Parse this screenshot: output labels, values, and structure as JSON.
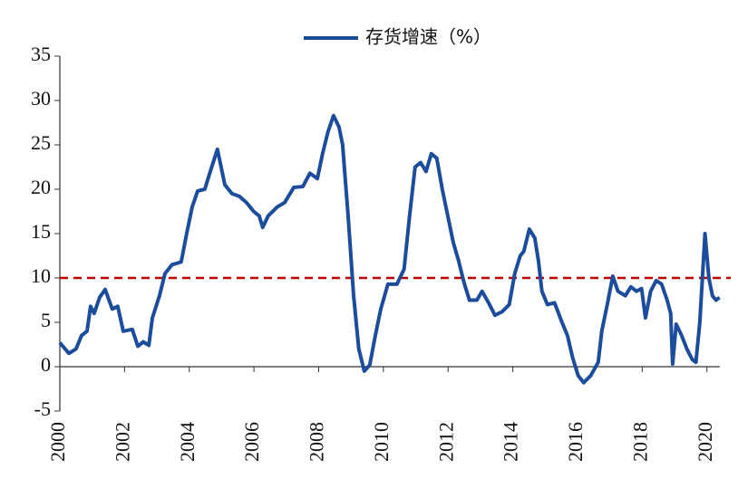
{
  "chart_data": {
    "type": "line",
    "x": [
      2000,
      2000.28,
      2000.5,
      2000.67,
      2000.84,
      2000.95,
      2001.06,
      2001.23,
      2001.4,
      2001.62,
      2001.79,
      2001.96,
      2002.24,
      2002.41,
      2002.58,
      2002.75,
      2002.86,
      2003.08,
      2003.25,
      2003.47,
      2003.75,
      2003.92,
      2004.09,
      2004.26,
      2004.48,
      2004.65,
      2004.87,
      2005.1,
      2005.32,
      2005.55,
      2005.77,
      2005.99,
      2006.16,
      2006.27,
      2006.44,
      2006.72,
      2006.95,
      2007.23,
      2007.51,
      2007.73,
      2007.96,
      2008.12,
      2008.29,
      2008.46,
      2008.63,
      2008.74,
      2008.91,
      2009.08,
      2009.24,
      2009.41,
      2009.58,
      2009.75,
      2009.92,
      2010.14,
      2010.42,
      2010.64,
      2010.81,
      2010.98,
      2011.15,
      2011.32,
      2011.48,
      2011.65,
      2011.82,
      2011.99,
      2012.16,
      2012.32,
      2012.49,
      2012.66,
      2012.89,
      2013.05,
      2013.28,
      2013.45,
      2013.67,
      2013.89,
      2014.06,
      2014.23,
      2014.34,
      2014.51,
      2014.68,
      2014.79,
      2014.9,
      2015.07,
      2015.29,
      2015.52,
      2015.69,
      2015.85,
      2016.02,
      2016.19,
      2016.41,
      2016.64,
      2016.75,
      2016.92,
      2017.09,
      2017.25,
      2017.48,
      2017.65,
      2017.82,
      2017.98,
      2018.1,
      2018.26,
      2018.43,
      2018.6,
      2018.77,
      2018.88,
      2018.94,
      2019.05,
      2019.22,
      2019.38,
      2019.55,
      2019.66,
      2019.78,
      2019.94,
      2020.06,
      2020.17,
      2020.28,
      2020.39
    ],
    "series": [
      {
        "name": "存货增速（%）",
        "color": "#1c4c9c",
        "values": [
          2.7,
          1.5,
          2,
          3.5,
          4,
          6.8,
          6,
          7.8,
          8.7,
          6.5,
          6.8,
          4,
          4.2,
          2.3,
          2.8,
          2.4,
          5.5,
          8,
          10.5,
          11.5,
          11.8,
          15,
          18,
          19.8,
          20,
          22,
          24.5,
          20.5,
          19.5,
          19.2,
          18.5,
          17.5,
          17,
          15.7,
          17,
          18,
          18.5,
          20.2,
          20.3,
          21.8,
          21.2,
          24,
          26.5,
          28.3,
          27,
          25,
          17,
          8,
          2,
          -0.5,
          0.2,
          3.5,
          6.5,
          9.3,
          9.3,
          11,
          17,
          22.5,
          23,
          22,
          24,
          23.5,
          20,
          17,
          14,
          12,
          9.5,
          7.5,
          7.5,
          8.5,
          7,
          5.8,
          6.2,
          7,
          10.5,
          12.5,
          13,
          15.5,
          14.5,
          12,
          8.5,
          7,
          7.2,
          5,
          3.5,
          1,
          -1,
          -1.8,
          -1,
          0.5,
          4,
          7,
          10.2,
          8.5,
          8,
          9,
          8.5,
          8.8,
          5.5,
          8.5,
          9.7,
          9.3,
          7.5,
          6,
          0.3,
          4.8,
          3.5,
          2,
          0.8,
          0.5,
          5,
          15,
          10,
          8,
          7.5,
          7.8
        ]
      }
    ],
    "reference_line": 10,
    "reference_color": "#c00000",
    "xlim": [
      2000,
      2020.4
    ],
    "xticks": [
      2000,
      2002,
      2004,
      2006,
      2008,
      2010,
      2012,
      2014,
      2016,
      2018,
      2020
    ],
    "ylim": [
      -5,
      35
    ],
    "yticks": [
      -5,
      0,
      5,
      10,
      15,
      20,
      25,
      30,
      35
    ]
  }
}
